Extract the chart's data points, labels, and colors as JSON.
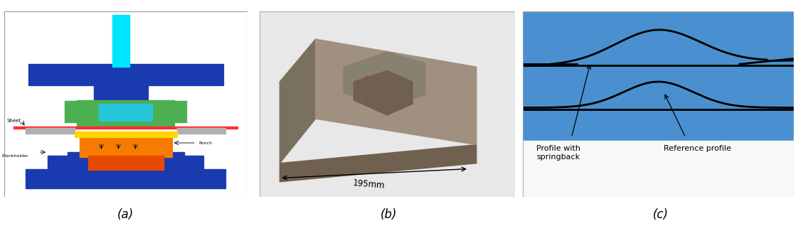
{
  "figure_width": 11.22,
  "figure_height": 3.18,
  "dpi": 100,
  "background_color": "#ffffff",
  "label_a": "(a)",
  "label_b": "(b)",
  "label_c": "(c)",
  "label_fontsize": 12,
  "label_color": "#000000",
  "image_a": {
    "bg_color": "#ffffff",
    "border_color": "#aaaaaa",
    "cyan_rod_color": "#00e5ff",
    "blue_color": "#1a3ab0",
    "green_color": "#4caf50",
    "cyan_center_color": "#26c6da",
    "orange_color": "#f57c00",
    "dark_orange_color": "#e64a00",
    "yellow_color": "#ffd600",
    "gray_color": "#b0b0b0",
    "red_sheet_color": "#ff0000"
  },
  "image_b": {
    "bg_color": "#f0f0f0",
    "border_color": "#cccccc",
    "part_color": "#8a8070",
    "part_dark_color": "#6a6055",
    "arrow_label": "195mm"
  },
  "image_c": {
    "bg_color": "#4a90d0",
    "white_section_color": "#f8f8f8",
    "profile_line_color": "#000000",
    "flat_line_color": "#000000",
    "text1": "Profile with\nspringback",
    "text2": "Reference profile"
  }
}
